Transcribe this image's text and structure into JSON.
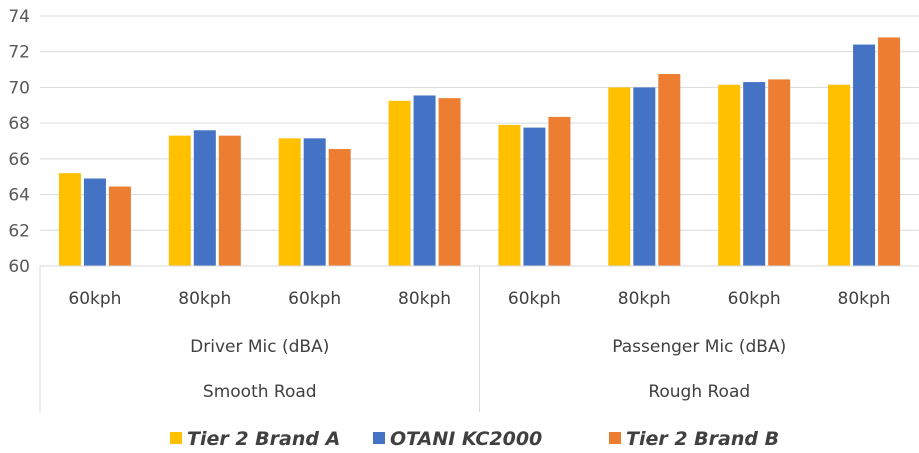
{
  "chart_data": {
    "type": "bar",
    "ylim": [
      60,
      74
    ],
    "yticks": [
      60,
      62,
      64,
      66,
      68,
      70,
      72,
      74
    ],
    "grid": true,
    "legend_position": "bottom",
    "categories": [
      "60kph",
      "80kph",
      "60kph",
      "80kph",
      "60kph",
      "80kph",
      "60kph",
      "80kph"
    ],
    "group_level_1": [
      {
        "label": "Driver Mic (dBA)",
        "span": [
          0,
          3
        ]
      },
      {
        "label": "Passenger Mic (dBA)",
        "span": [
          4,
          7
        ]
      }
    ],
    "group_level_2": [
      {
        "label": "Smooth Road",
        "span": [
          0,
          3
        ]
      },
      {
        "label": "Rough Road",
        "span": [
          4,
          7
        ]
      }
    ],
    "series": [
      {
        "name": "Tier 2 Brand A",
        "color": "#FFC000",
        "values": [
          65.2,
          67.3,
          67.15,
          69.25,
          67.9,
          70.0,
          70.15,
          70.15
        ]
      },
      {
        "name": "OTANI KC2000",
        "color": "#4472C4",
        "values": [
          64.9,
          67.6,
          67.15,
          69.55,
          67.75,
          70.0,
          70.3,
          72.4
        ]
      },
      {
        "name": "Tier 2 Brand B",
        "color": "#ED7D31",
        "values": [
          64.45,
          67.3,
          66.55,
          69.4,
          68.35,
          70.75,
          70.45,
          72.8
        ]
      }
    ]
  }
}
